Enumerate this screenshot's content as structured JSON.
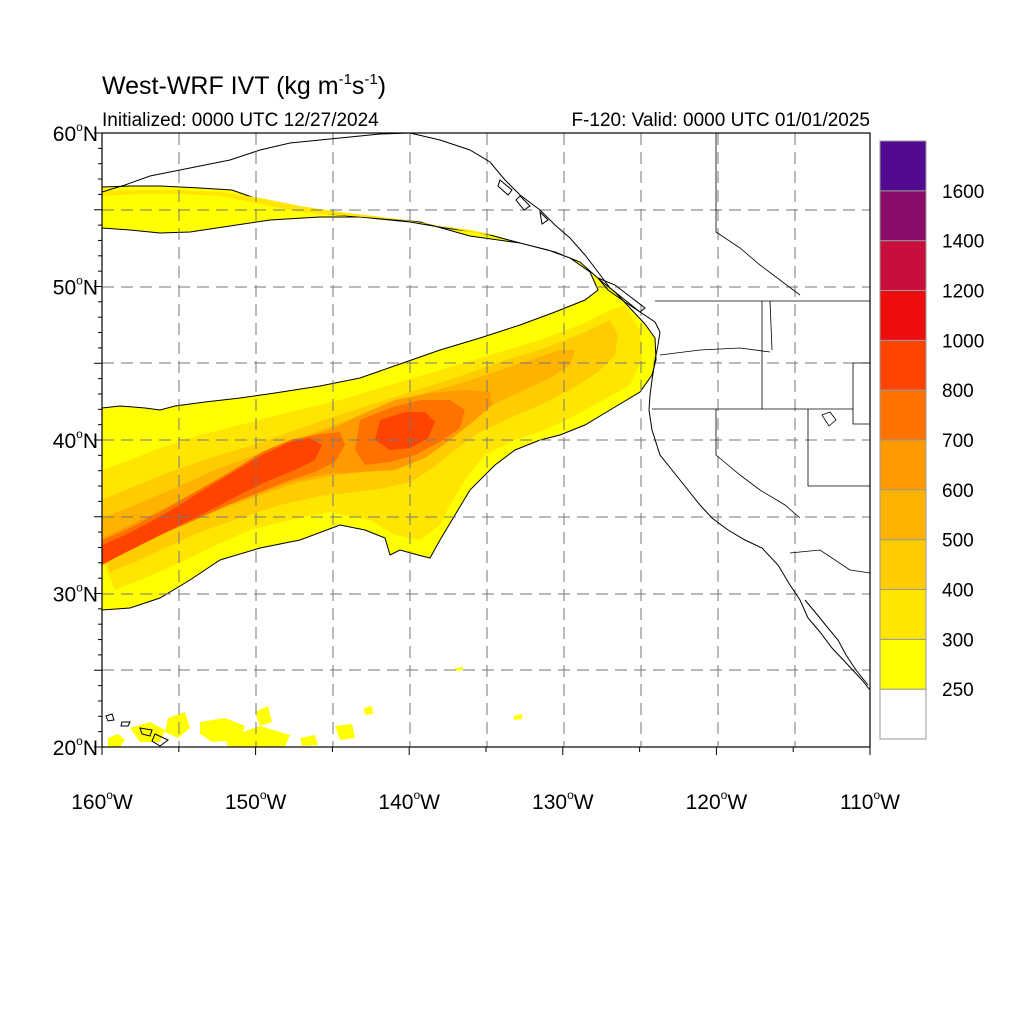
{
  "title": {
    "prefix": "West-WRF IVT (kg m",
    "sup1": "-1",
    "middle": "s",
    "sup2": "-1",
    "suffix": ")"
  },
  "initialized": "Initialized: 0000 UTC 12/27/2024",
  "valid": "F-120: Valid: 0000 UTC 01/01/2025",
  "map": {
    "lon_range": [
      -160,
      -110
    ],
    "lat_range": [
      20,
      60
    ],
    "gridlines_lon": [
      -155,
      -150,
      -145,
      -140,
      -135,
      -130,
      -125,
      -120,
      -115
    ],
    "gridlines_lat": [
      25,
      30,
      35,
      40,
      45,
      50,
      55
    ],
    "lat_labels": [
      {
        "lat": 60,
        "text": "60",
        "deg": "o",
        "hem": "N"
      },
      {
        "lat": 50,
        "text": "50",
        "deg": "o",
        "hem": "N"
      },
      {
        "lat": 40,
        "text": "40",
        "deg": "o",
        "hem": "N"
      },
      {
        "lat": 30,
        "text": "30",
        "deg": "o",
        "hem": "N"
      },
      {
        "lat": 20,
        "text": "20",
        "deg": "o",
        "hem": "N"
      }
    ],
    "lon_labels": [
      {
        "lon": -160,
        "text": "160",
        "deg": "o",
        "hem": "W"
      },
      {
        "lon": -150,
        "text": "150",
        "deg": "o",
        "hem": "W"
      },
      {
        "lon": -140,
        "text": "140",
        "deg": "o",
        "hem": "W"
      },
      {
        "lon": -130,
        "text": "130",
        "deg": "o",
        "hem": "W"
      },
      {
        "lon": -120,
        "text": "120",
        "deg": "o",
        "hem": "W"
      },
      {
        "lon": -110,
        "text": "110",
        "deg": "o",
        "hem": "W"
      }
    ]
  },
  "colorbar": {
    "levels": [
      {
        "min": 250,
        "color": "#ffff00"
      },
      {
        "min": 300,
        "color": "#ffe600"
      },
      {
        "min": 400,
        "color": "#ffcc00"
      },
      {
        "min": 500,
        "color": "#ffb300"
      },
      {
        "min": 600,
        "color": "#ff9a00"
      },
      {
        "min": 700,
        "color": "#ff7200"
      },
      {
        "min": 800,
        "color": "#ff4400"
      },
      {
        "min": 1000,
        "color": "#ee0d0d"
      },
      {
        "min": 1200,
        "color": "#c80f3c"
      },
      {
        "min": 1400,
        "color": "#880c68"
      },
      {
        "min": 1600,
        "color": "#520b90"
      }
    ],
    "bottom_color": "#ffffff",
    "labels": [
      "250",
      "300",
      "400",
      "500",
      "600",
      "700",
      "800",
      "1000",
      "1200",
      "1400",
      "1600"
    ]
  }
}
